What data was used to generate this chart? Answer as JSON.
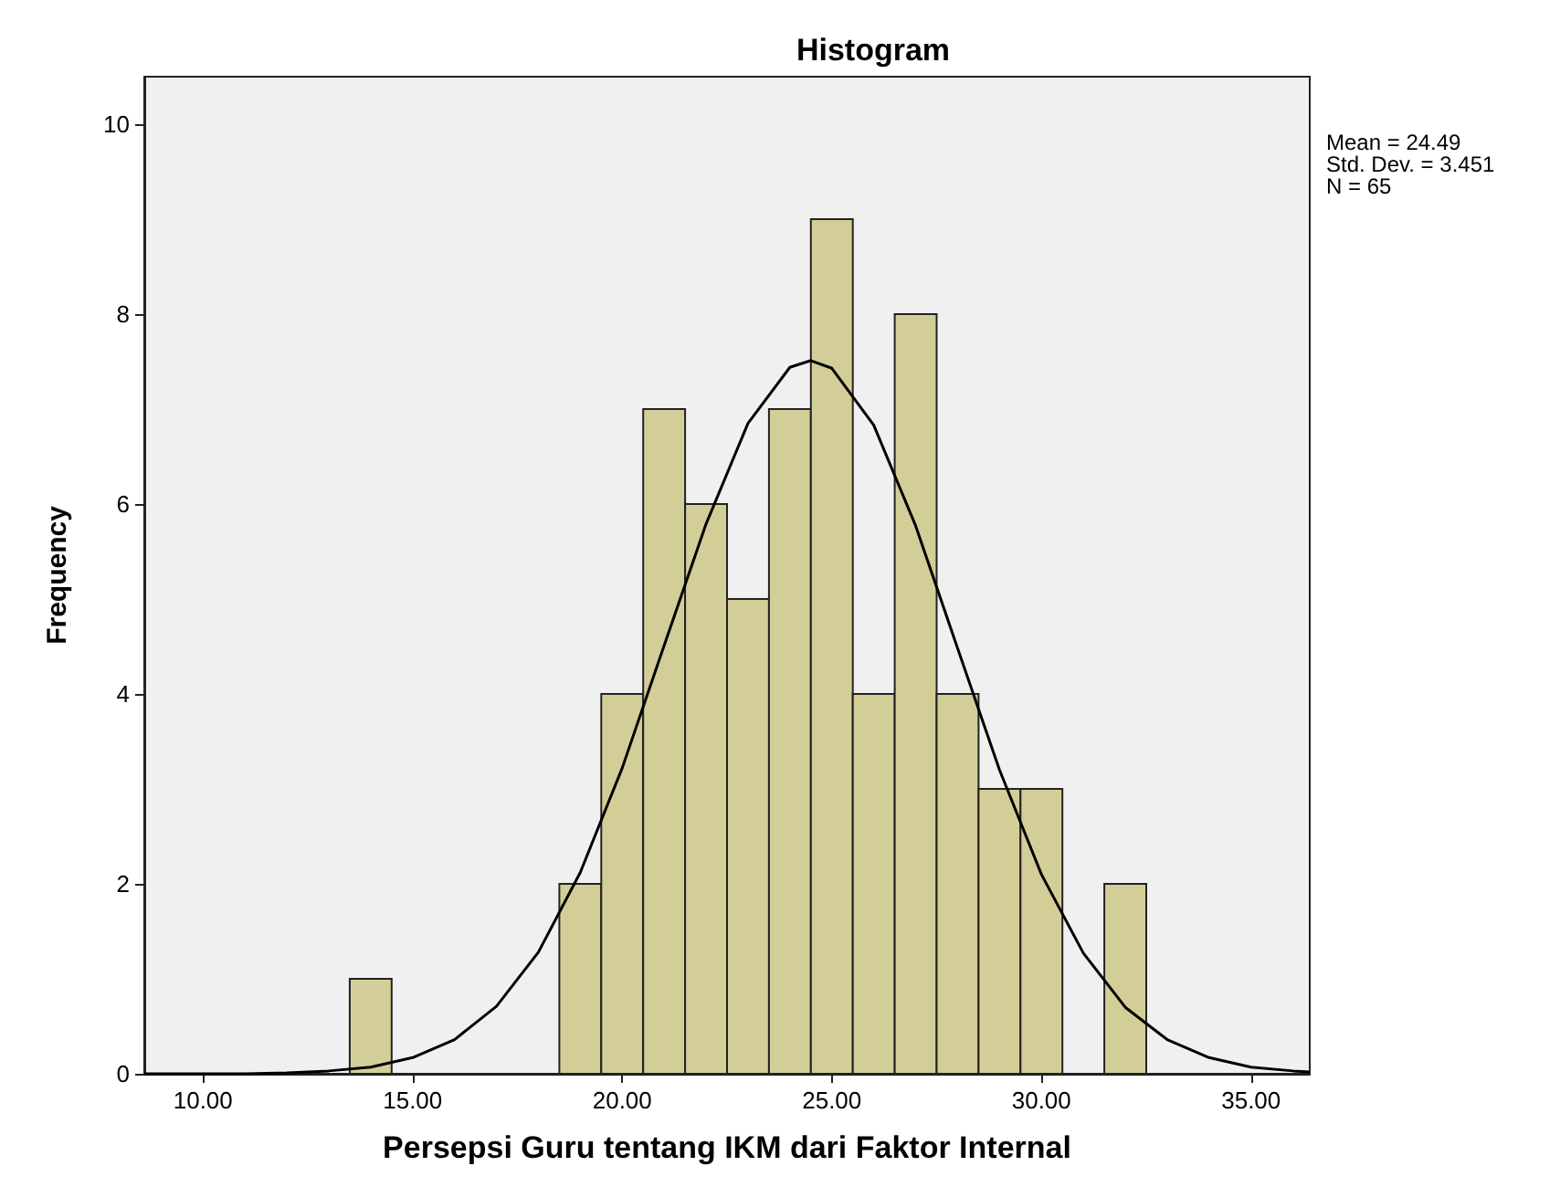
{
  "chart_data": {
    "type": "histogram",
    "title": "Histogram",
    "xlabel": "Persepsi Guru tentang IKM dari Faktor Internal",
    "ylabel": "Frequency",
    "bins": [
      13.5,
      14.5,
      15.5,
      16.5,
      17.5,
      18.5,
      19.5,
      20.5,
      21.5,
      22.5,
      23.5,
      24.5,
      25.5,
      26.5,
      27.5,
      28.5,
      29.5,
      30.5,
      31.5,
      32.5
    ],
    "values": [
      1,
      0,
      0,
      0,
      0,
      2,
      4,
      7,
      6,
      5,
      7,
      9,
      4,
      8,
      4,
      3,
      3,
      0,
      2
    ],
    "color": "#d3ce97",
    "series": [
      {
        "type": "line",
        "color": "#000000",
        "x": [
          8.6,
          9,
          10,
          11,
          12,
          13,
          14,
          15,
          16,
          17,
          18,
          19,
          20,
          21,
          22,
          23,
          24,
          24.49,
          25,
          26,
          27,
          28,
          29,
          30,
          31,
          32,
          33,
          34,
          35,
          36,
          36.4
        ],
        "values": [
          0,
          0,
          0,
          0,
          0.01,
          0.03,
          0.07,
          0.17,
          0.36,
          0.71,
          1.28,
          2.12,
          3.22,
          4.51,
          5.79,
          6.85,
          7.44,
          7.51,
          7.43,
          6.83,
          5.77,
          4.48,
          3.2,
          2.1,
          1.27,
          0.7,
          0.36,
          0.17,
          0.07,
          0.03,
          0.02
        ]
      }
    ],
    "xlim": [
      8.6,
      36.4
    ],
    "ylim": [
      0,
      10.5
    ],
    "xticks": [
      {
        "value": 10,
        "label": "10.00"
      },
      {
        "value": 15,
        "label": "15.00"
      },
      {
        "value": 20,
        "label": "20.00"
      },
      {
        "value": 25,
        "label": "25.00"
      },
      {
        "value": 30,
        "label": "30.00"
      },
      {
        "value": 35,
        "label": "35.00"
      }
    ],
    "yticks": [
      0,
      2,
      4,
      6,
      8,
      10
    ],
    "annotations": [
      "Mean = 24.49",
      "Std. Dev. = 3.451",
      "N = 65"
    ],
    "grid": false,
    "legend": false,
    "marker": "none",
    "line_style": "solid"
  }
}
